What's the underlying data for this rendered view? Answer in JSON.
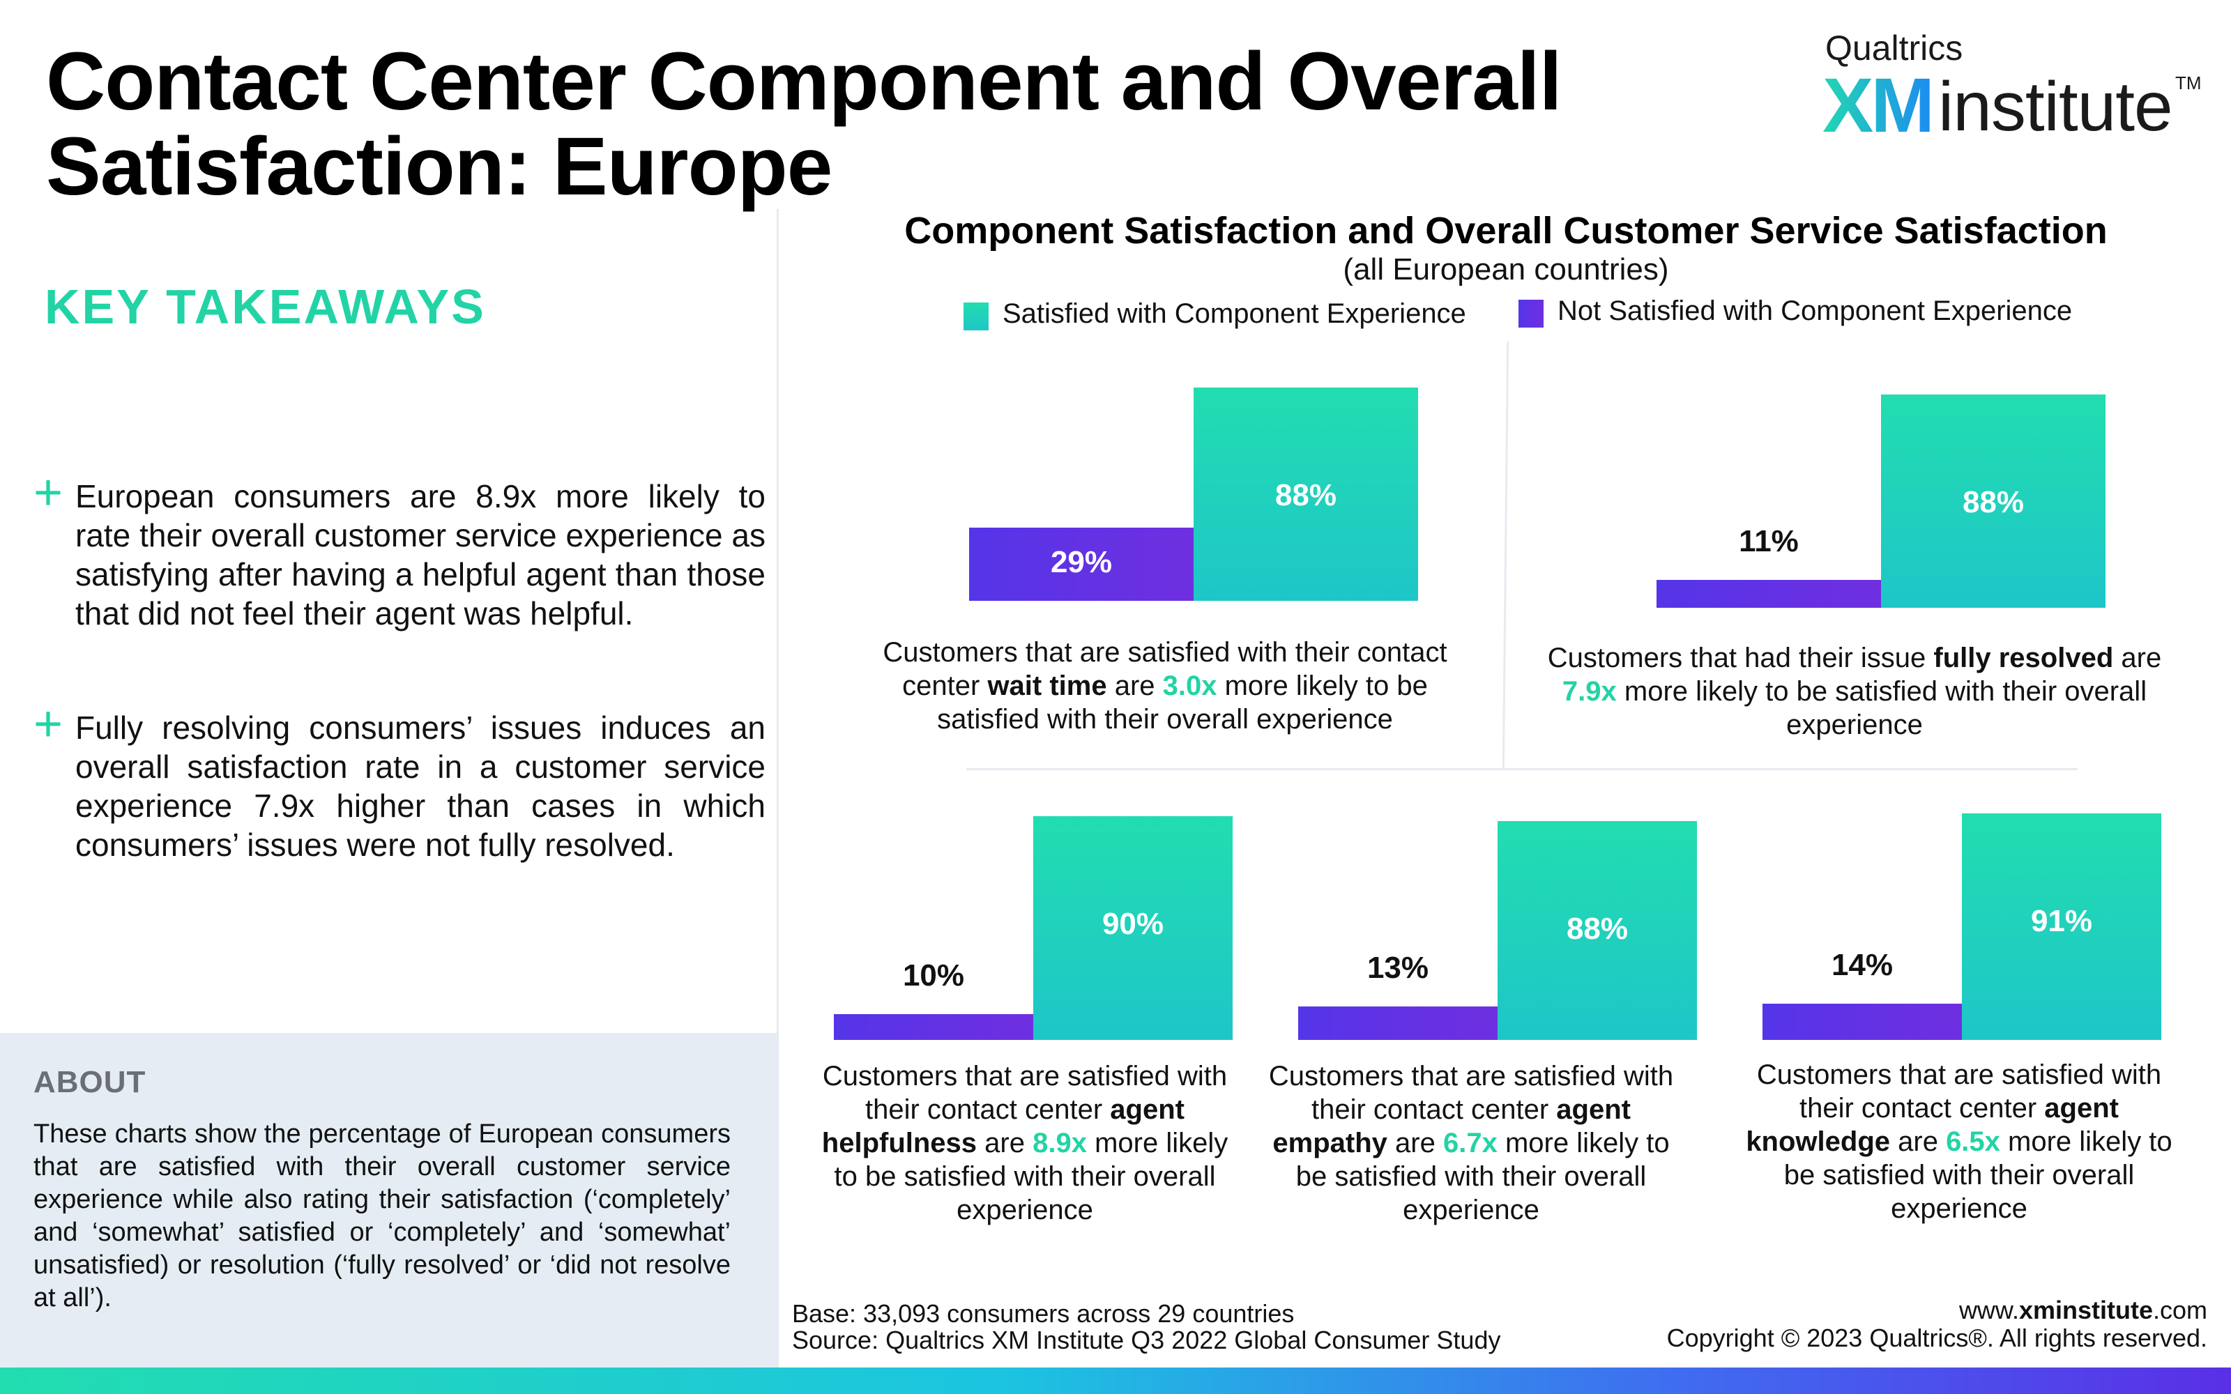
{
  "page": {
    "title_line1": "Contact Center Component and Overall",
    "title_line2": "Satisfaction: Europe"
  },
  "logo": {
    "small": "Qualtrics",
    "xm": "XM",
    "institute": "institute",
    "tm": "TM"
  },
  "takeaways": {
    "heading": "KEY TAKEAWAYS",
    "items": [
      "European consumers are 8.9x more likely to rate their overall customer service experience as satisfying after having a helpful agent than those that did not feel their agent was helpful.",
      "Fully resolving consumers’ issues induces an overall satisfaction rate in a customer service experience 7.9x higher than cases in which consumers’ issues were not fully resolved."
    ]
  },
  "about": {
    "heading": "ABOUT",
    "text": "These charts show the percentage of European consumers that are satisfied with their overall customer service experience while also rating their satisfaction (‘completely’ and ‘somewhat’ satisfied or ‘completely’ and ‘somewhat’ unsatisfied) or resolution (‘fully resolved’ or ‘did not resolve at all’)."
  },
  "footer": {
    "base": "Base: 33,093 consumers across 29 countries",
    "source": "Source: Qualtrics XM Institute Q3 2022 Global Consumer Study",
    "site_prefix": "www.",
    "site_bold": "xminstitute",
    "site_suffix": ".com",
    "copyright": "Copyright © 2023 Qualtrics®. All rights reserved."
  },
  "colors": {
    "teal": "#22d3a5",
    "purple": "#5a32e6",
    "about_bg": "#e5ecf4"
  },
  "chart_data": {
    "type": "bar",
    "title": "Component Satisfaction and Overall Customer Service Satisfaction",
    "subtitle": "(all European countries)",
    "legend": [
      "Satisfied with Component Experience",
      "Not Satisfied with Component Experience"
    ],
    "ylim": [
      0,
      100
    ],
    "panels": [
      {
        "not_satisfied": 29,
        "satisfied": 88,
        "not_label": "29%",
        "sat_label": "88%",
        "caption": {
          "pre": "Customers that are satisfied with their contact center ",
          "bold": "wait time",
          "mid": " are ",
          "mult": "3.0x",
          "post": " more likely to be satisfied with their overall experience"
        }
      },
      {
        "not_satisfied": 11,
        "satisfied": 88,
        "not_label": "11%",
        "sat_label": "88%",
        "caption": {
          "pre": "Customers that had their issue ",
          "bold": "fully resolved",
          "mid": " are ",
          "mult": "7.9x",
          "post": " more likely to be satisfied with their overall experience"
        }
      },
      {
        "not_satisfied": 10,
        "satisfied": 90,
        "not_label": "10%",
        "sat_label": "90%",
        "caption": {
          "pre": "Customers that are satisfied with their contact center ",
          "bold": "agent helpfulness",
          "mid": " are ",
          "mult": "8.9x",
          "post": " more likely to be satisfied with their overall experience"
        }
      },
      {
        "not_satisfied": 13,
        "satisfied": 88,
        "not_label": "13%",
        "sat_label": "88%",
        "caption": {
          "pre": "Customers that are satisfied with their contact center ",
          "bold": "agent empathy",
          "mid": " are ",
          "mult": "6.7x",
          "post": " more likely to be satisfied with their overall experience"
        }
      },
      {
        "not_satisfied": 14,
        "satisfied": 91,
        "not_label": "14%",
        "sat_label": "91%",
        "caption": {
          "pre": "Customers that are satisfied with their contact center ",
          "bold": "agent knowledge",
          "mid": " are ",
          "mult": "6.5x",
          "post": " more likely to be satisfied with their overall experience"
        }
      }
    ]
  }
}
